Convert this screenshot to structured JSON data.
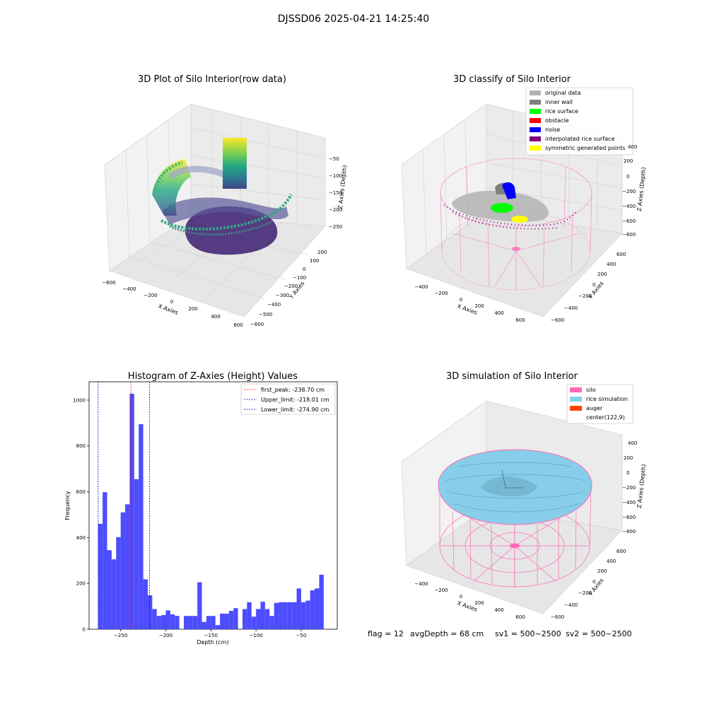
{
  "figure": {
    "suptitle": "DJSSD06 2025-04-21 14:25:40",
    "footer": {
      "flag": "flag = 12",
      "avg_depth": "avgDepth = 68 cm",
      "sv1": "sv1 = 500~2500",
      "sv2": "sv2 = 500~2500"
    }
  },
  "colors": {
    "hist_bar": "#4d4dff",
    "peak_line": "#ff0000",
    "limit_line": "#0000cc",
    "silo": "#ff69b4",
    "rice_simulation": "#87ceeb",
    "auger": "#ff4500",
    "original_data": "#b3b3b3",
    "inner_wall": "#808080",
    "rice_surface": "#00ff00",
    "obstacle": "#ff0000",
    "noise": "#0000ff",
    "interpolated_rice_surface": "#800080",
    "symmetric_generated_points": "#ffff00"
  },
  "chart_data": [
    {
      "type": "scatter",
      "title": "3D Plot of Silo Interior(row data)",
      "xlabel": "X Axies",
      "ylabel": "Y Axies",
      "zlabel": "Z Axies (Depth)",
      "x_ticks": [
        "−600",
        "−400",
        "−200",
        "0",
        "200",
        "400",
        "600"
      ],
      "y_ticks": [
        "−600",
        "−500",
        "−400",
        "−300",
        "−200",
        "−100",
        "0",
        "100",
        "200"
      ],
      "z_ticks": [
        "−50",
        "−100",
        "−150",
        "−200",
        "−250"
      ],
      "grid": true
    },
    {
      "type": "scatter",
      "title": "3D classify of Silo Interior",
      "xlabel": "X Axies",
      "ylabel": "Y Axies",
      "zlabel": "Z Axies (Depth)",
      "x_ticks": [
        "−400",
        "−200",
        "0",
        "200",
        "400",
        "600"
      ],
      "y_ticks": [
        "−600",
        "−400",
        "−200",
        "0",
        "200",
        "400",
        "600"
      ],
      "z_ticks": [
        "400",
        "200",
        "0",
        "−200",
        "−400",
        "−600",
        "−800"
      ],
      "legend": {
        "placement": "top-right",
        "entries": [
          "original data",
          "inner wall",
          "rice surface",
          "obstacle",
          "noise",
          "interpolated rice surface",
          "symmetric generated points"
        ]
      },
      "grid": true
    },
    {
      "type": "bar",
      "title": "Histogram of Z-Axies (Height) Values",
      "xlabel": "Depth (cm)",
      "ylabel": "Frequency",
      "xlim": [
        -285,
        -10
      ],
      "ylim": [
        0,
        1080
      ],
      "x_ticks": [
        -250,
        -200,
        -150,
        -100,
        -50
      ],
      "y_ticks": [
        0,
        200,
        400,
        600,
        800,
        1000
      ],
      "bin_start": -275,
      "bin_width": 5,
      "values": [
        460,
        598,
        345,
        305,
        402,
        510,
        545,
        1028,
        655,
        895,
        218,
        148,
        88,
        58,
        62,
        82,
        65,
        58,
        0,
        58,
        58,
        58,
        205,
        32,
        58,
        58,
        18,
        68,
        68,
        80,
        92,
        0,
        88,
        118,
        55,
        88,
        120,
        88,
        58,
        115,
        118,
        118,
        118,
        118,
        178,
        118,
        125,
        170,
        178,
        238
      ],
      "vlines": [
        {
          "x": -238.7,
          "label": "first_peak: -238.70 cm",
          "color": "#ff0000"
        },
        {
          "x": -218.01,
          "label": "Upper_limit: -218.01 cm",
          "color": "#0000cc"
        },
        {
          "x": -274.9,
          "label": "Lower_limit: -274.90 cm",
          "color": "#0000cc"
        }
      ],
      "legend": {
        "placement": "top-right"
      },
      "grid": false
    },
    {
      "type": "area",
      "title": "3D simulation of Silo Interior",
      "xlabel": "X Axies",
      "ylabel": "Y Axies",
      "zlabel": "Z Axies (Depth)",
      "x_ticks": [
        "−400",
        "−200",
        "0",
        "200",
        "400",
        "600"
      ],
      "y_ticks": [
        "−600",
        "−400",
        "−200",
        "0",
        "200",
        "400",
        "600"
      ],
      "z_ticks": [
        "400",
        "200",
        "0",
        "−200",
        "−400",
        "−600",
        "−800"
      ],
      "legend": {
        "placement": "top-right",
        "entries": [
          "silo",
          "rice simulation",
          "auger",
          "center(122,9)"
        ]
      },
      "grid": true
    }
  ]
}
